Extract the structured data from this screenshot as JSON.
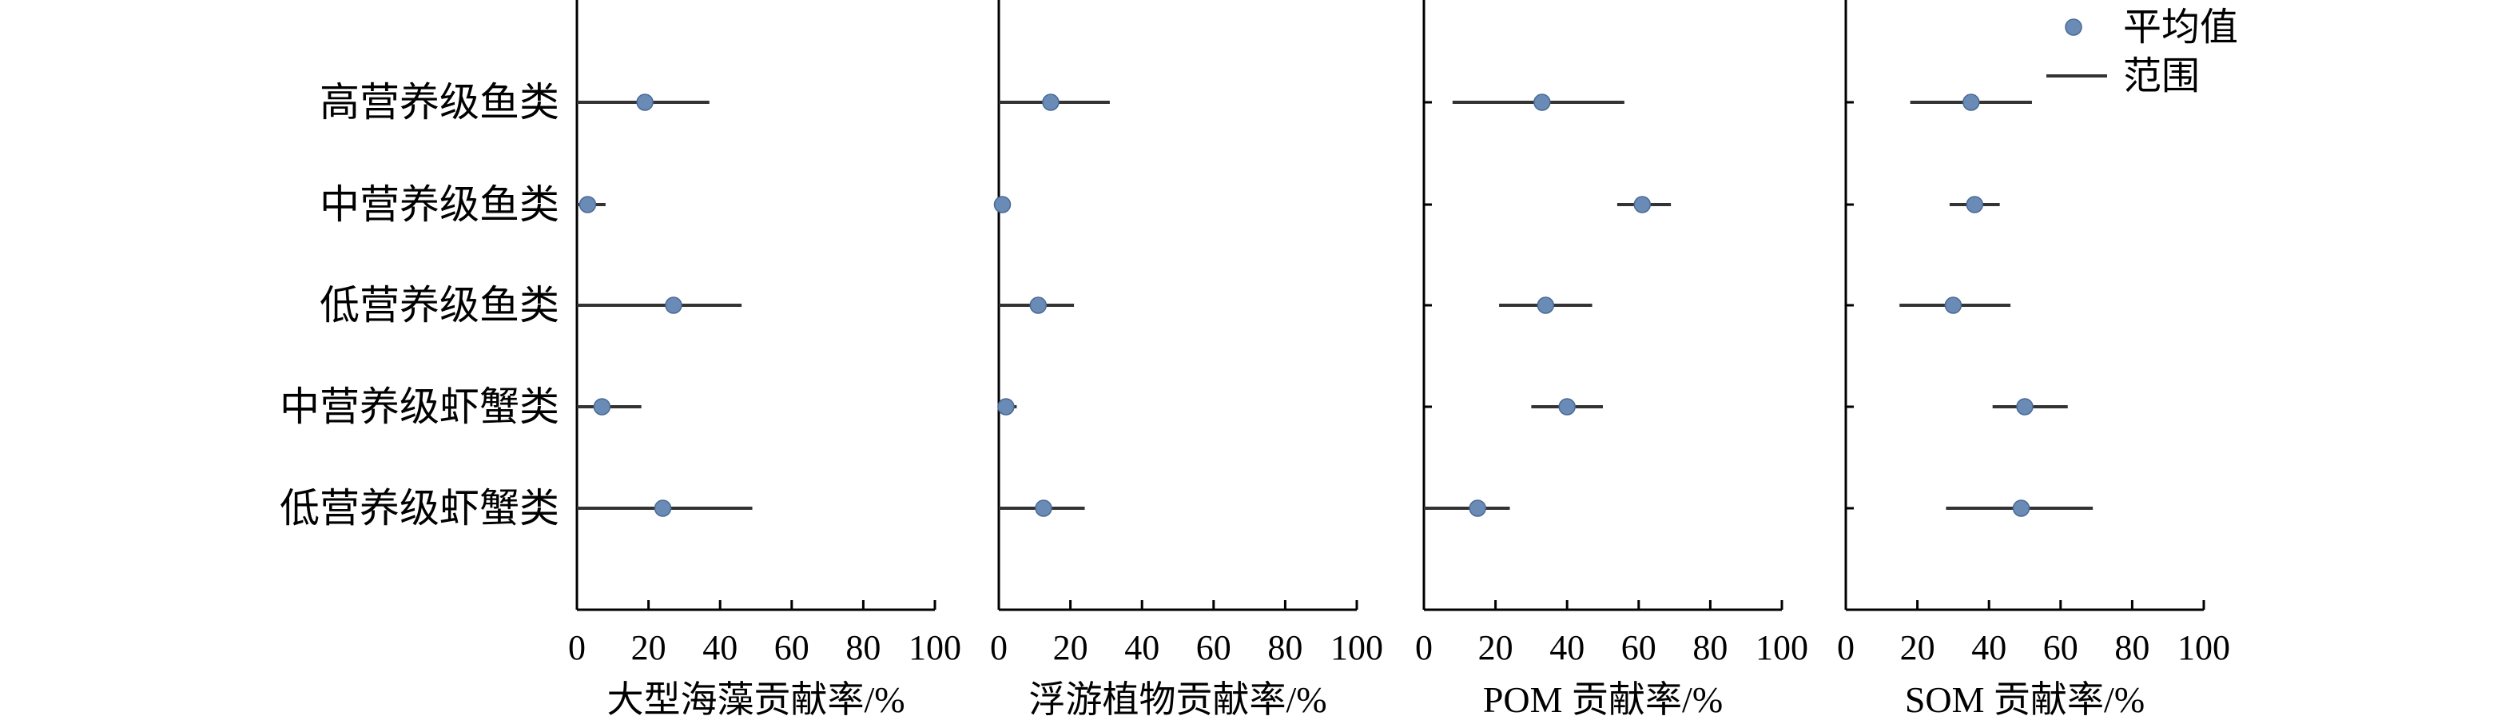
{
  "chart_data": {
    "type": "scatter",
    "categories": [
      "高营养级鱼类",
      "中营养级鱼类",
      "低营养级鱼类",
      "中营养级虾蟹类",
      "低营养级虾蟹类"
    ],
    "xlim": [
      0,
      100
    ],
    "xticks": [
      "0",
      "20",
      "40",
      "60",
      "80",
      "100"
    ],
    "marker_color": "#6a8bb6",
    "range_color": "#333333",
    "legend": {
      "position": "top-right",
      "mean_label": "平均值",
      "range_label": "范围"
    },
    "panels": [
      {
        "xlabel": "大型海藻贡献率/%",
        "mean": [
          19,
          3,
          27,
          7,
          24
        ],
        "low": [
          0,
          0,
          0,
          0,
          0
        ],
        "high": [
          37,
          8,
          46,
          18,
          49
        ]
      },
      {
        "xlabel": "浮游植物贡献率/%",
        "mean": [
          14.5,
          1,
          11,
          2,
          12.5
        ],
        "low": [
          0,
          0,
          0,
          0,
          0
        ],
        "high": [
          31,
          1.5,
          21,
          5,
          24
        ]
      },
      {
        "xlabel": "POM 贡献率/%",
        "mean": [
          33,
          61,
          34,
          40,
          15
        ],
        "low": [
          8,
          54,
          21,
          30,
          0
        ],
        "high": [
          56,
          69,
          47,
          50,
          24
        ]
      },
      {
        "xlabel": "SOM 贡献率/%",
        "mean": [
          35,
          36,
          30,
          50,
          49
        ],
        "low": [
          18,
          29,
          15,
          41,
          28
        ],
        "high": [
          52,
          43,
          46,
          62,
          69
        ]
      }
    ]
  }
}
